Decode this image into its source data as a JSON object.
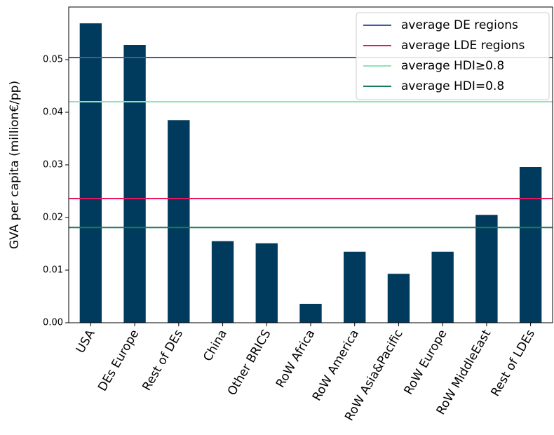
{
  "chart_data": {
    "type": "bar",
    "y_label": "GVA per capita (million€/pp)",
    "categories": [
      "USA",
      "DEs Europe",
      "Rest of DEs",
      "China",
      "Other BRICS",
      "RoW Africa",
      "RoW America",
      "RoW Asia&Pacific",
      "RoW Europe",
      "RoW MiddleEast",
      "Rest of LDEs"
    ],
    "values": [
      0.0569,
      0.0528,
      0.0385,
      0.0155,
      0.0151,
      0.0036,
      0.0135,
      0.0093,
      0.0135,
      0.0205,
      0.0296
    ],
    "color": "#003a5c",
    "ylim": [
      0,
      0.06
    ],
    "yticks": [
      {
        "value": 0,
        "label": "0.00"
      },
      {
        "value": 0.01,
        "label": "0.01"
      },
      {
        "value": 0.02,
        "label": "0.02"
      },
      {
        "value": 0.03,
        "label": "0.03"
      },
      {
        "value": 0.04,
        "label": "0.04"
      },
      {
        "value": 0.05,
        "label": "0.05"
      }
    ],
    "hlines": [
      {
        "name": "average DE regions",
        "color": "#3b5ba5",
        "value": 0.0504
      },
      {
        "name": "average LDE regions",
        "color": "#e8175d",
        "value": 0.0236
      },
      {
        "name": "average HDI≥0.8",
        "color": "#8fe3b5",
        "value": 0.042
      },
      {
        "name": "average HDI=0.8",
        "color": "#1a7a5a",
        "value": 0.0181
      }
    ],
    "legend": "upper right"
  }
}
